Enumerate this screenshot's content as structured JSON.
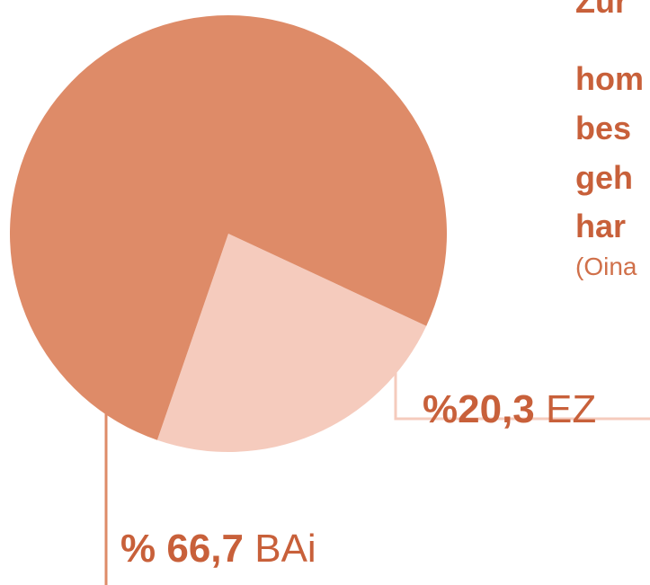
{
  "chart_data": {
    "type": "pie",
    "title_lines": [
      "Zur",
      "hom",
      "bes",
      "geh",
      "har"
    ],
    "note": "(Oina",
    "categories": [
      "BAi",
      "EZ"
    ],
    "values": [
      66.7,
      20.3
    ],
    "value_labels": [
      "% 66,7",
      "%20,3"
    ],
    "colors": [
      "#de8b68",
      "#f5cbbd"
    ]
  }
}
